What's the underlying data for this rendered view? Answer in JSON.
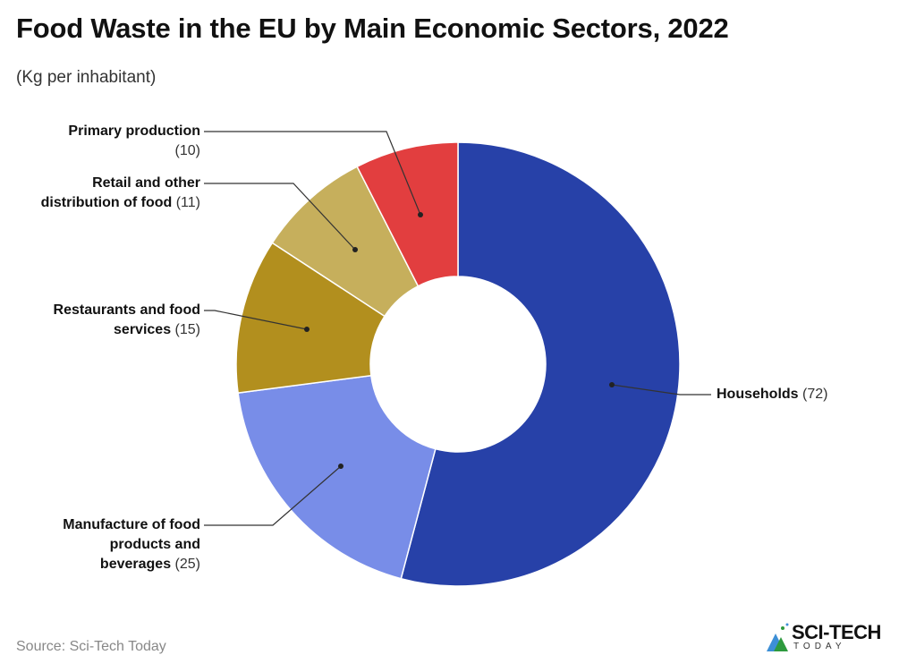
{
  "chart_data": {
    "type": "pie",
    "donut": true,
    "title": "Food Waste in the EU by Main Economic Sectors, 2022",
    "subtitle": "(Kg per inhabitant)",
    "categories": [
      "Households",
      "Manufacture of food products and beverages",
      "Restaurants and food services",
      "Retail and other distribution of food",
      "Primary production"
    ],
    "values": [
      72,
      25,
      15,
      11,
      10
    ],
    "colors": [
      "#2741A8",
      "#788DE8",
      "#B28F1E",
      "#C6AF5C",
      "#E23E3F"
    ],
    "labels": [
      {
        "lines": [
          "Households"
        ],
        "value": "(72)"
      },
      {
        "lines": [
          "Manufacture of food",
          "products and",
          "beverages"
        ],
        "value": "(25)"
      },
      {
        "lines": [
          "Restaurants and food",
          "services"
        ],
        "value": "(15)"
      },
      {
        "lines": [
          "Retail and other",
          "distribution of food"
        ],
        "value": "(11)"
      },
      {
        "lines": [
          "Primary production"
        ],
        "value": "(10)"
      }
    ],
    "source": "Source: Sci-Tech Today"
  },
  "logo": {
    "line1": "SCI-TECH",
    "line2": "TODAY"
  }
}
